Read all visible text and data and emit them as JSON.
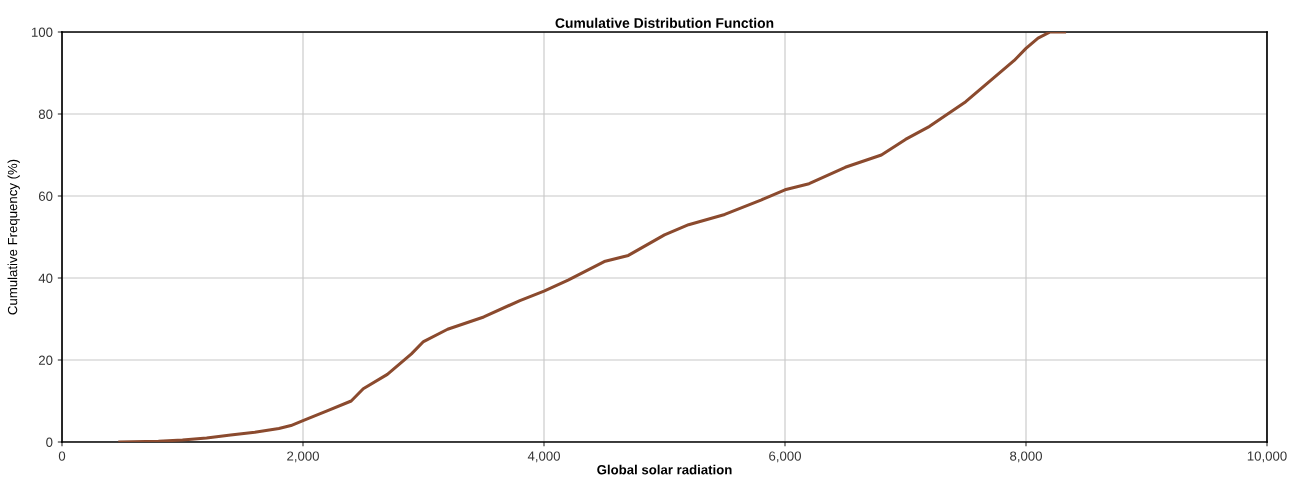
{
  "chart_data": {
    "type": "line",
    "title": "Cumulative Distribution Function",
    "xlabel": "Global solar radiation",
    "ylabel": "Cumulative Frequency (%)",
    "x": [
      480,
      800,
      1000,
      1200,
      1400,
      1600,
      1800,
      1900,
      2000,
      2200,
      2400,
      2500,
      2700,
      2800,
      2900,
      3000,
      3200,
      3500,
      3800,
      4000,
      4200,
      4500,
      4700,
      5000,
      5200,
      5500,
      5800,
      6000,
      6200,
      6500,
      6800,
      7000,
      7200,
      7500,
      7700,
      7900,
      8000,
      8100,
      8200,
      8320
    ],
    "series": [
      {
        "color": "#8b4a2e",
        "values": [
          0,
          0.2,
          0.5,
          1,
          1.7,
          2.4,
          3.3,
          4,
          5.2,
          7.6,
          10,
          13,
          16.5,
          19,
          21.5,
          24.5,
          27.5,
          30.5,
          34.5,
          36.8,
          39.5,
          44,
          45.5,
          50.5,
          53,
          55.5,
          59,
          61.5,
          63,
          67,
          70,
          73.8,
          77,
          83,
          88,
          93,
          96,
          98.5,
          100,
          100
        ]
      }
    ],
    "xlim": [
      0,
      10000
    ],
    "ylim": [
      0,
      100
    ],
    "xticks": [
      0,
      {
        "value": 2000,
        "label": "2,000"
      },
      {
        "value": 4000,
        "label": "4,000"
      },
      {
        "value": 6000,
        "label": "6,000"
      },
      {
        "value": 8000,
        "label": "8,000"
      },
      {
        "value": 10000,
        "label": "10,000"
      }
    ],
    "yticks": [
      0,
      20,
      40,
      60,
      80,
      100
    ],
    "grid": true,
    "marker": "none",
    "line_style": "solid"
  }
}
